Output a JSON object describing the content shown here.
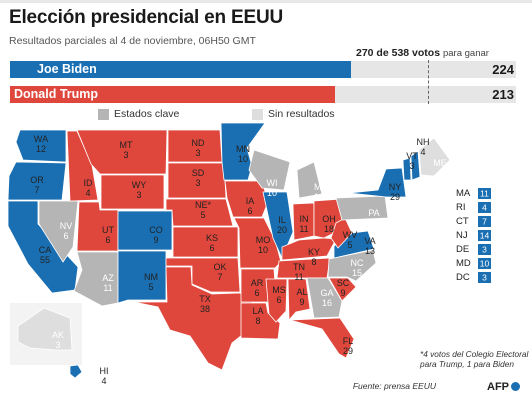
{
  "header": {
    "title": "Elección presidencial en EEUU",
    "subtitle": "Resultados parciales al 4 de noviembre, 06H50 GMT"
  },
  "threshold": {
    "votes": "270 de 538 votos",
    "suffix": "para ganar",
    "value": 270,
    "total": 538
  },
  "candidates": [
    {
      "name": "Joe Biden",
      "votes": "224",
      "electoral_votes": 224,
      "color": "#1a6fb3"
    },
    {
      "name": "Donald Trump",
      "votes": "213",
      "electoral_votes": 213,
      "color": "#e0473c"
    }
  ],
  "legend": {
    "key_states": "Estados clave",
    "no_results": "Sin resultados"
  },
  "colors": {
    "biden": "#1a6fb3",
    "trump": "#e0473c",
    "key": "#b5b5b5",
    "noresult": "#dedede"
  },
  "states": [
    {
      "abbr": "WA",
      "ev": "12",
      "party": "biden"
    },
    {
      "abbr": "OR",
      "ev": "7",
      "party": "biden"
    },
    {
      "abbr": "CA",
      "ev": "55",
      "party": "biden"
    },
    {
      "abbr": "NV",
      "ev": "6",
      "party": "key"
    },
    {
      "abbr": "ID",
      "ev": "4",
      "party": "trump"
    },
    {
      "abbr": "MT",
      "ev": "3",
      "party": "trump"
    },
    {
      "abbr": "WY",
      "ev": "3",
      "party": "trump"
    },
    {
      "abbr": "UT",
      "ev": "6",
      "party": "trump"
    },
    {
      "abbr": "AZ",
      "ev": "11",
      "party": "key"
    },
    {
      "abbr": "CO",
      "ev": "9",
      "party": "biden"
    },
    {
      "abbr": "NM",
      "ev": "5",
      "party": "biden"
    },
    {
      "abbr": "ND",
      "ev": "3",
      "party": "trump"
    },
    {
      "abbr": "SD",
      "ev": "3",
      "party": "trump"
    },
    {
      "abbr": "NE*",
      "ev": "5",
      "party": "trump"
    },
    {
      "abbr": "KS",
      "ev": "6",
      "party": "trump"
    },
    {
      "abbr": "OK",
      "ev": "7",
      "party": "trump"
    },
    {
      "abbr": "TX",
      "ev": "38",
      "party": "trump"
    },
    {
      "abbr": "MN",
      "ev": "10",
      "party": "biden"
    },
    {
      "abbr": "IA",
      "ev": "6",
      "party": "trump"
    },
    {
      "abbr": "MO",
      "ev": "10",
      "party": "trump"
    },
    {
      "abbr": "AR",
      "ev": "6",
      "party": "trump"
    },
    {
      "abbr": "LA",
      "ev": "8",
      "party": "trump"
    },
    {
      "abbr": "WI",
      "ev": "10",
      "party": "key"
    },
    {
      "abbr": "IL",
      "ev": "20",
      "party": "biden"
    },
    {
      "abbr": "MI",
      "ev": "16",
      "party": "key"
    },
    {
      "abbr": "IN",
      "ev": "11",
      "party": "trump"
    },
    {
      "abbr": "OH",
      "ev": "18",
      "party": "trump"
    },
    {
      "abbr": "KY",
      "ev": "8",
      "party": "trump"
    },
    {
      "abbr": "TN",
      "ev": "11",
      "party": "trump"
    },
    {
      "abbr": "MS",
      "ev": "6",
      "party": "trump"
    },
    {
      "abbr": "AL",
      "ev": "9",
      "party": "trump"
    },
    {
      "abbr": "GA",
      "ev": "16",
      "party": "key"
    },
    {
      "abbr": "FL",
      "ev": "29",
      "party": "trump"
    },
    {
      "abbr": "SC",
      "ev": "9",
      "party": "trump"
    },
    {
      "abbr": "NC",
      "ev": "15",
      "party": "key"
    },
    {
      "abbr": "VA",
      "ev": "13",
      "party": "biden"
    },
    {
      "abbr": "WV",
      "ev": "5",
      "party": "trump"
    },
    {
      "abbr": "PA",
      "ev": "20",
      "party": "key"
    },
    {
      "abbr": "NY",
      "ev": "29",
      "party": "biden"
    },
    {
      "abbr": "VT",
      "ev": "3",
      "party": "biden"
    },
    {
      "abbr": "NH",
      "ev": "4",
      "party": "biden"
    },
    {
      "abbr": "ME",
      "ev": "4",
      "party": "noresult"
    },
    {
      "abbr": "AK",
      "ev": "3",
      "party": "noresult"
    },
    {
      "abbr": "HI",
      "ev": "4",
      "party": "biden"
    }
  ],
  "small_states": [
    {
      "abbr": "MA",
      "ev": "11"
    },
    {
      "abbr": "RI",
      "ev": "4"
    },
    {
      "abbr": "CT",
      "ev": "7"
    },
    {
      "abbr": "NJ",
      "ev": "14"
    },
    {
      "abbr": "DE",
      "ev": "3"
    },
    {
      "abbr": "MD",
      "ev": "10"
    },
    {
      "abbr": "DC",
      "ev": "3"
    }
  ],
  "footnote": "*4 votos del Colegio Electoral para Trump, 1 para Biden",
  "source": "Fuente: prensa EEUU",
  "agency": "AFP"
}
